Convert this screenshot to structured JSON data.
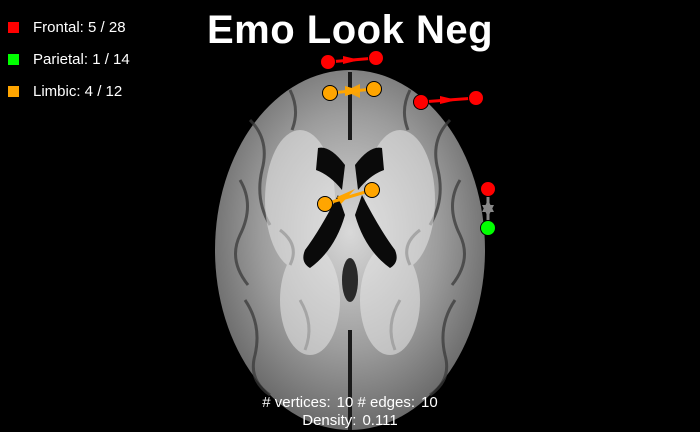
{
  "title": "Emo Look Neg",
  "legend": [
    {
      "label": "Frontal: 5 / 28",
      "color": "#ff0000"
    },
    {
      "label": "Parietal: 1 / 14",
      "color": "#00ff00"
    },
    {
      "label": "Limbic: 4 / 12",
      "color": "#ffa500"
    }
  ],
  "stats": {
    "vertices_label": "# vertices:",
    "vertices_value": "10",
    "edges_label": "# edges:",
    "edges_value": "10",
    "density_label": "Density:",
    "density_value": "0.111"
  },
  "graph": {
    "nodes": [
      {
        "id": "n1",
        "region": "Frontal"
      },
      {
        "id": "n2",
        "region": "Frontal"
      },
      {
        "id": "n3",
        "region": "Frontal"
      },
      {
        "id": "n4",
        "region": "Frontal"
      },
      {
        "id": "n5",
        "region": "Frontal"
      },
      {
        "id": "n6",
        "region": "Limbic"
      },
      {
        "id": "n7",
        "region": "Limbic"
      },
      {
        "id": "n8",
        "region": "Limbic"
      },
      {
        "id": "n9",
        "region": "Limbic"
      },
      {
        "id": "n10",
        "region": "Parietal"
      }
    ],
    "edges": [
      {
        "from": "n1",
        "to": "n2",
        "color": "#ff0000"
      },
      {
        "from": "n3",
        "to": "n4",
        "color": "#ff0000"
      },
      {
        "from": "n6",
        "to": "n7",
        "color": "#ffa500"
      },
      {
        "from": "n8",
        "to": "n9",
        "color": "#ffa500"
      },
      {
        "from": "n5",
        "to": "n10",
        "color": "#888888"
      }
    ]
  }
}
